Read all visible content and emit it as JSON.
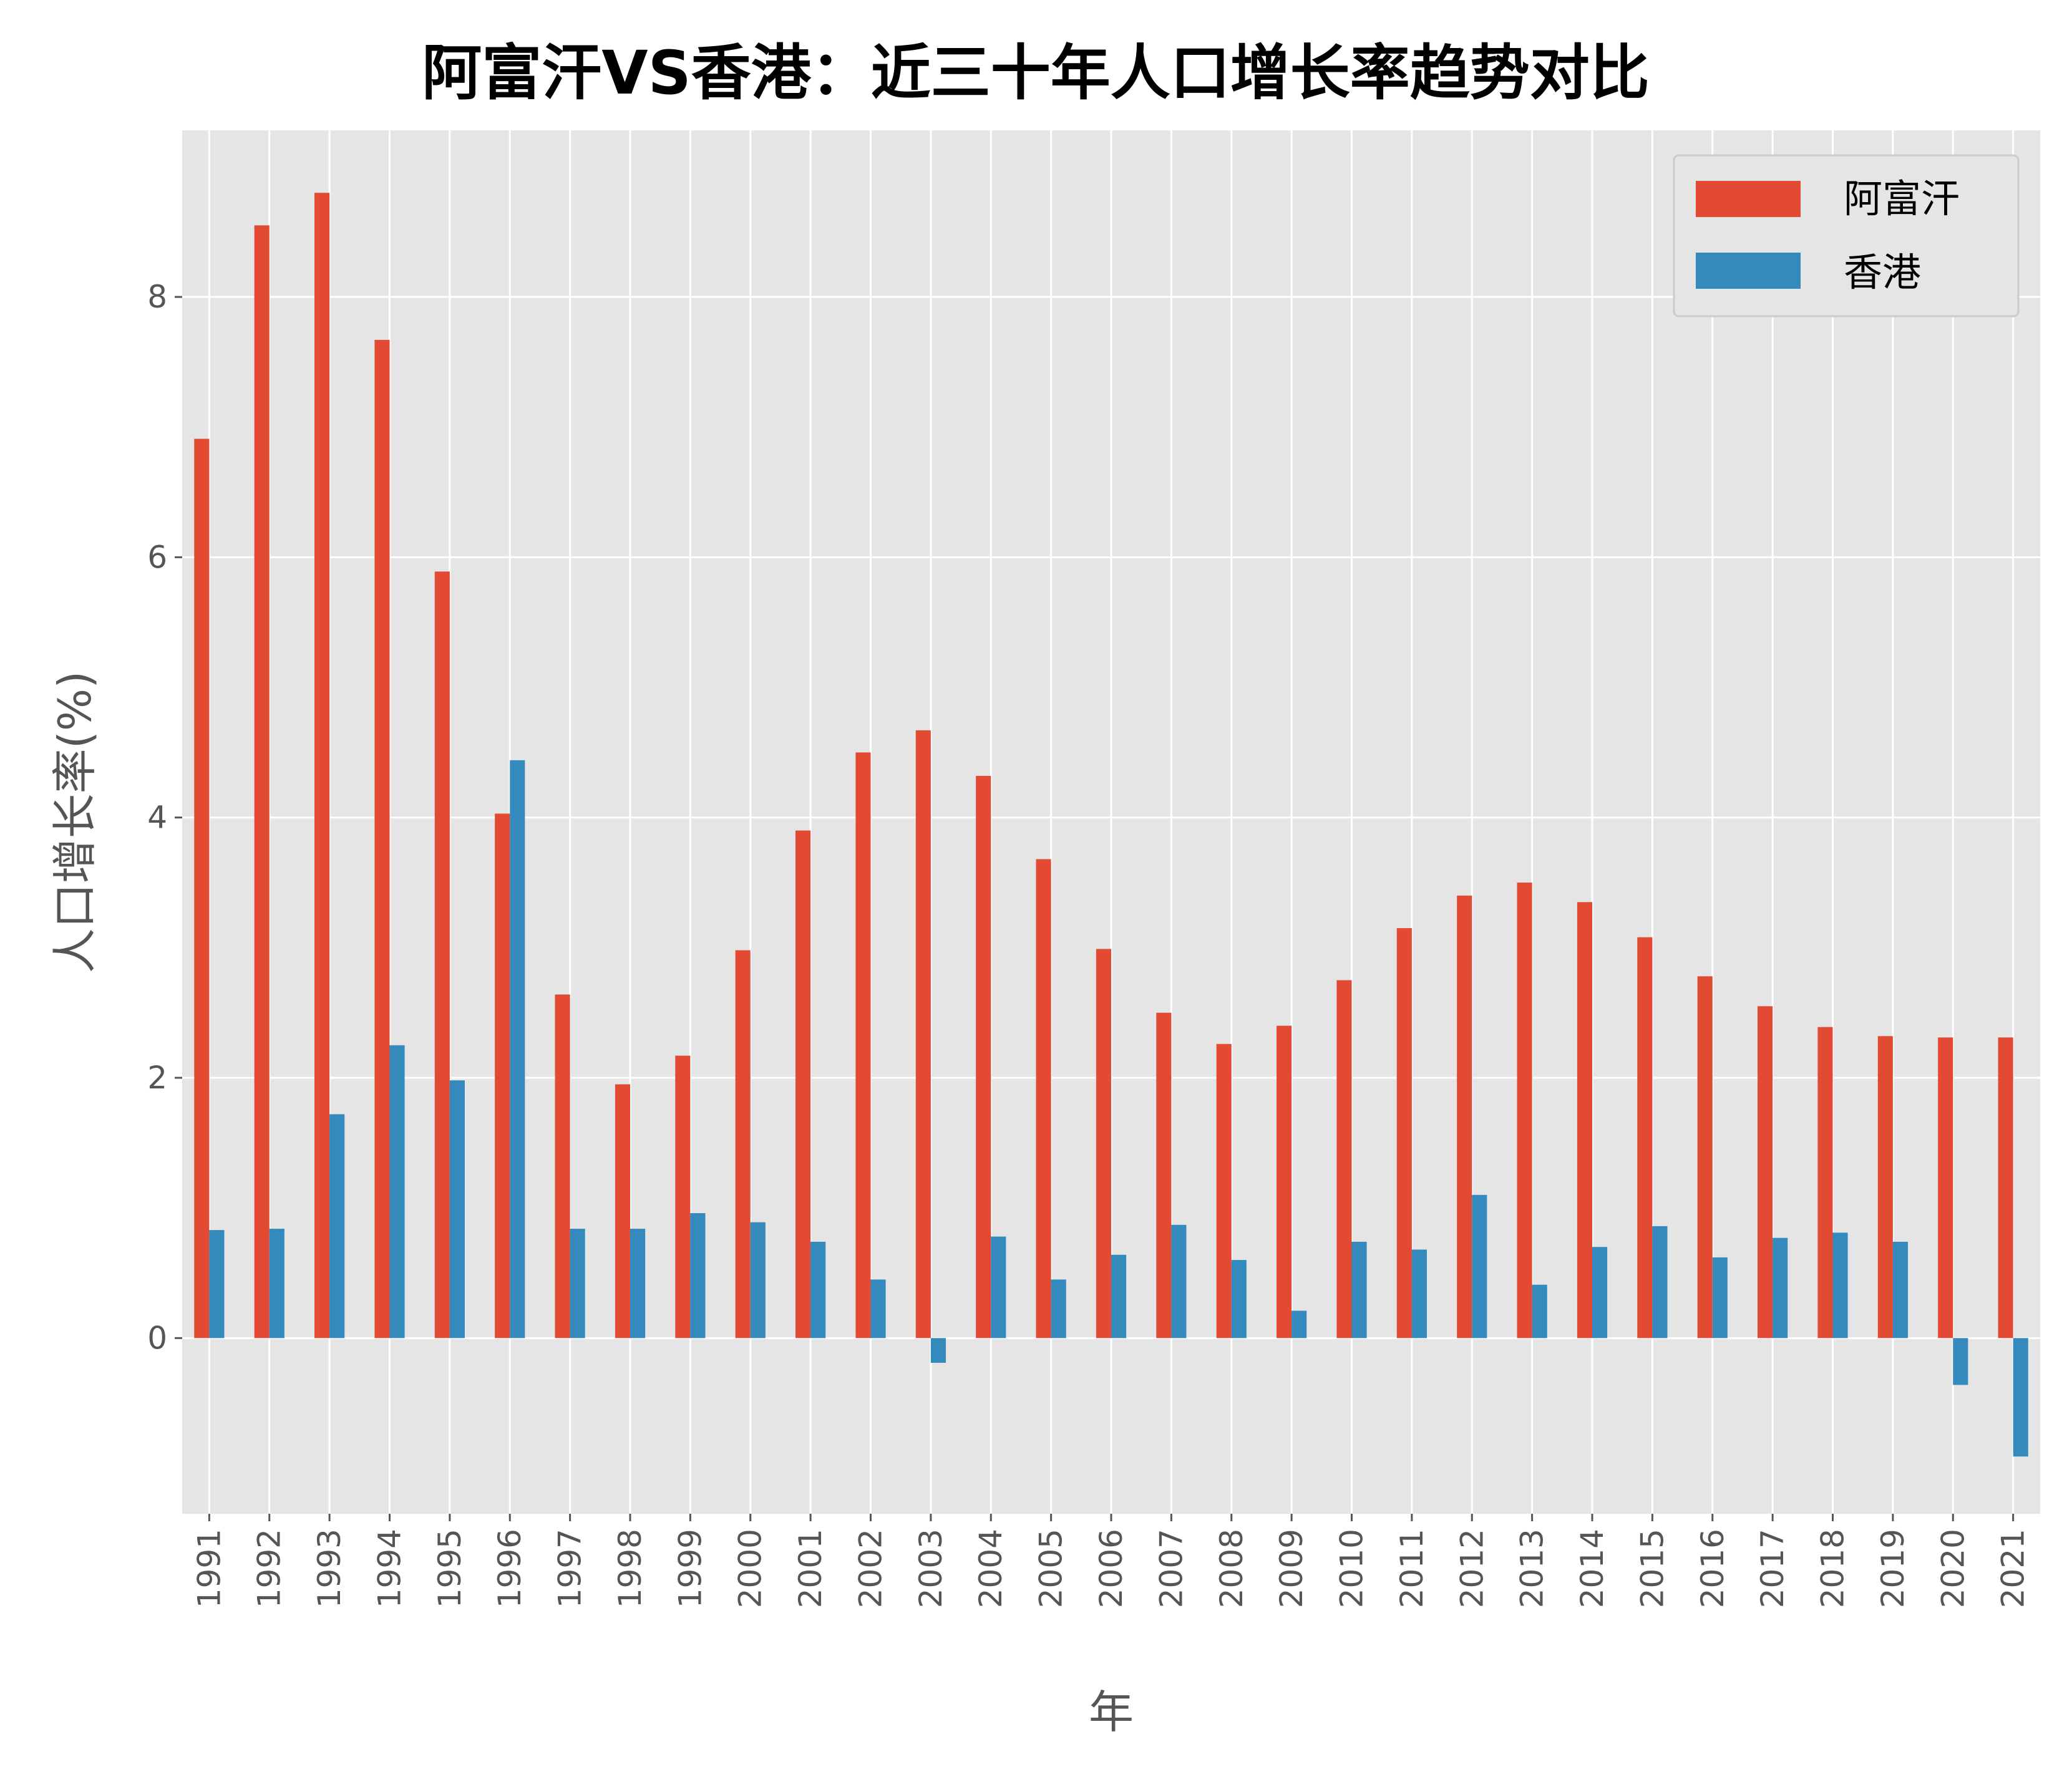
{
  "chart_data": {
    "type": "bar",
    "title": "阿富汗VS香港：近三十年人口增长率趋势对比",
    "xlabel": "年",
    "ylabel": "人口增长率(%)",
    "ylim": [
      -1.35,
      9.28
    ],
    "yticks": [
      0,
      2,
      4,
      6,
      8
    ],
    "grid": true,
    "legend_position": "top-right",
    "categories": [
      "1991",
      "1992",
      "1993",
      "1994",
      "1995",
      "1996",
      "1997",
      "1998",
      "1999",
      "2000",
      "2001",
      "2002",
      "2003",
      "2004",
      "2005",
      "2006",
      "2007",
      "2008",
      "2009",
      "2010",
      "2011",
      "2012",
      "2013",
      "2014",
      "2015",
      "2016",
      "2017",
      "2018",
      "2019",
      "2020",
      "2021"
    ],
    "series": [
      {
        "name": "阿富汗",
        "color": "#E24A33",
        "values": [
          6.91,
          8.55,
          8.8,
          7.67,
          5.89,
          4.03,
          2.64,
          1.95,
          2.17,
          2.98,
          3.9,
          4.5,
          4.67,
          4.32,
          3.68,
          2.99,
          2.5,
          2.26,
          2.4,
          2.75,
          3.15,
          3.4,
          3.5,
          3.35,
          3.08,
          2.78,
          2.55,
          2.39,
          2.32,
          2.31,
          2.31
        ]
      },
      {
        "name": "香港",
        "color": "#348ABD",
        "values": [
          0.83,
          0.84,
          1.72,
          2.25,
          1.98,
          4.44,
          0.84,
          0.84,
          0.96,
          0.89,
          0.74,
          0.45,
          -0.19,
          0.78,
          0.45,
          0.64,
          0.87,
          0.6,
          0.21,
          0.74,
          0.68,
          1.1,
          0.41,
          0.7,
          0.86,
          0.62,
          0.77,
          0.81,
          0.74,
          -0.36,
          -0.91
        ]
      }
    ]
  }
}
